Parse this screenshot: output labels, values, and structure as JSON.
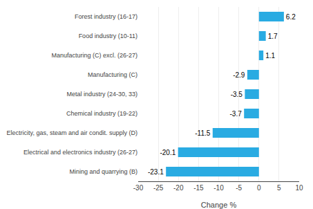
{
  "chart_data": {
    "type": "bar",
    "orientation": "horizontal",
    "categories": [
      "Mining and quarrying (B)",
      "Electrical and electronics industry (26-27)",
      "Electricity, gas, steam and air condit. supply (D)",
      "Chemical industry (19-22)",
      "Metal industry (24-30, 33)",
      "Manufacturing (C)",
      "Manufacturing (C) excl. (26-27)",
      "Food industry (10-11)",
      "Forest industry (16-17)"
    ],
    "values": [
      -23.1,
      -20.1,
      -11.5,
      -3.7,
      -3.5,
      -2.9,
      1.1,
      1.7,
      6.2
    ],
    "color": "#29abe2",
    "xlabel": "Change %",
    "xlim": [
      -30,
      10
    ],
    "xticks": [
      -30,
      -25,
      -20,
      -15,
      -10,
      -5,
      0,
      5,
      10
    ],
    "grid": true,
    "data_labels": true
  }
}
